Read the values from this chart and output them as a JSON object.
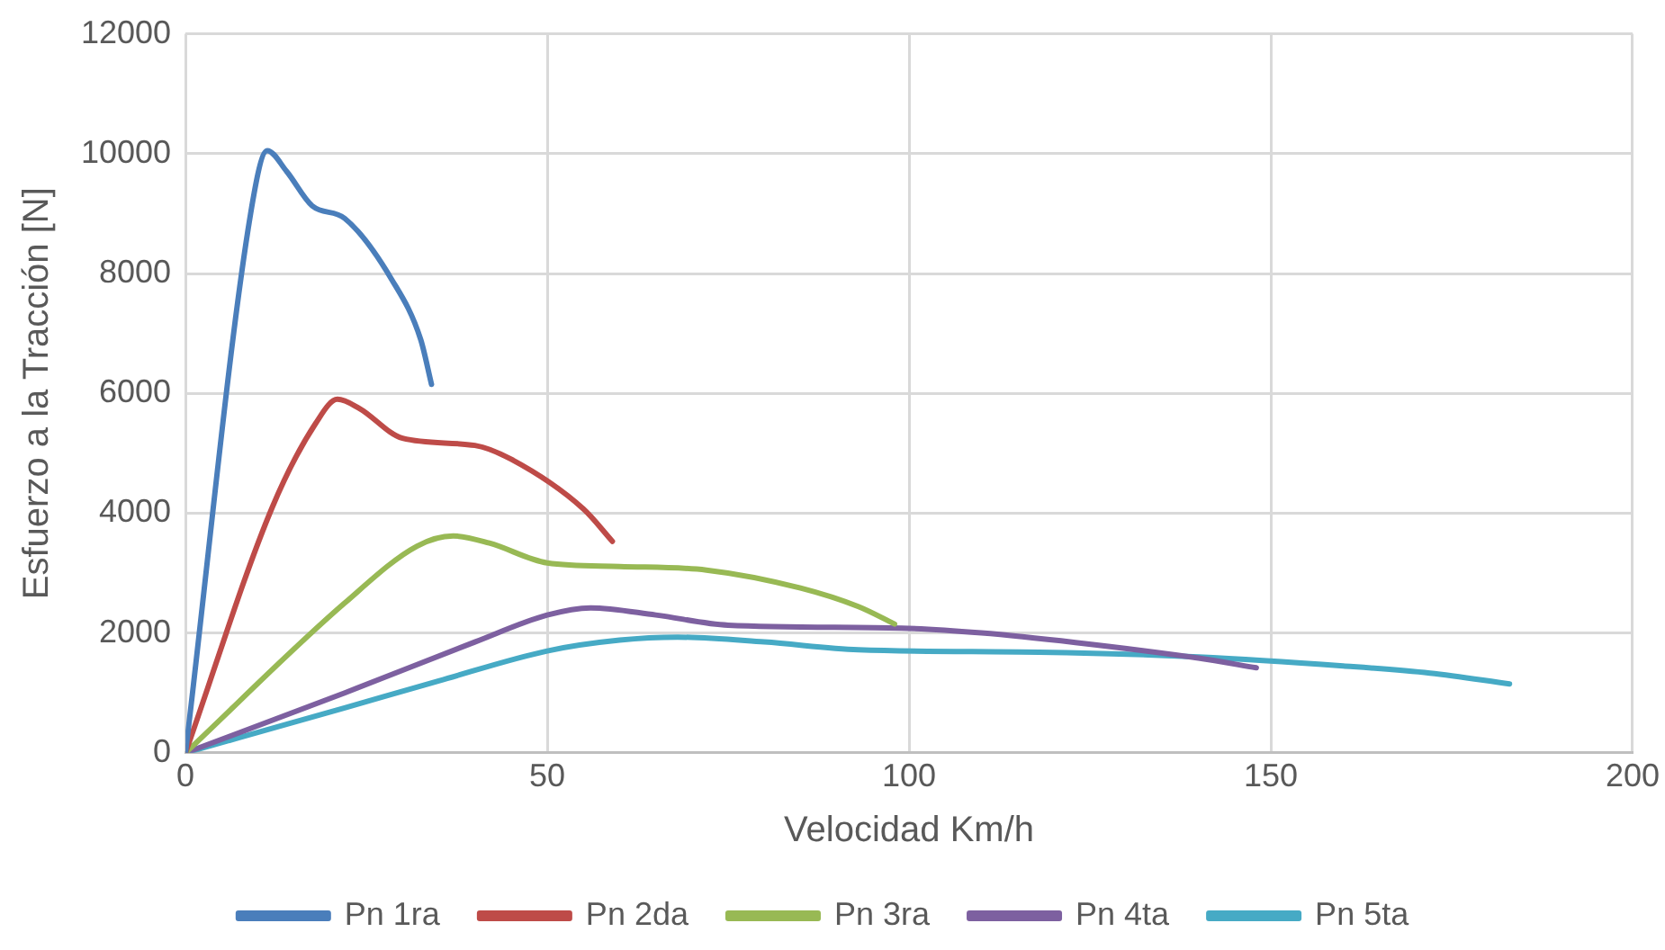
{
  "chart_data": {
    "type": "line",
    "xlabel": "Velocidad Km/h",
    "ylabel": "Esfuerzo a la Tracción [N]",
    "xlim": [
      0,
      200
    ],
    "xticks": [
      0,
      50,
      100,
      150,
      200
    ],
    "ylim": [
      0,
      12000
    ],
    "yticks": [
      0,
      2000,
      4000,
      6000,
      8000,
      10000,
      12000
    ],
    "grid": true,
    "legend": "bottom",
    "marker": "none",
    "series": [
      {
        "name": "Pn 1ra",
        "color": "#4a7ebb",
        "x": [
          0,
          9,
          11.3,
          14,
          17.5,
          22,
          28.5,
          32.5,
          34
        ],
        "values": [
          0,
          9000,
          10050,
          9700,
          9130,
          8920,
          7900,
          6900,
          6150
        ]
      },
      {
        "name": "Pn 2da",
        "color": "#be4b48",
        "x": [
          0,
          12,
          18,
          21,
          24,
          30,
          40,
          45,
          55,
          59
        ],
        "values": [
          0,
          4100,
          5500,
          5900,
          5750,
          5250,
          5130,
          4900,
          4070,
          3530
        ]
      },
      {
        "name": "Pn 3ra",
        "color": "#98b954",
        "x": [
          0,
          22,
          32,
          37,
          42,
          50,
          60,
          72,
          85,
          93,
          98
        ],
        "values": [
          0,
          2500,
          3450,
          3620,
          3500,
          3170,
          3110,
          3050,
          2750,
          2440,
          2150
        ]
      },
      {
        "name": "Pn 4ta",
        "color": "#7d60a0",
        "x": [
          0,
          22,
          40,
          50,
          56,
          65,
          75,
          99,
          110,
          123,
          140,
          148
        ],
        "values": [
          0,
          1000,
          1850,
          2300,
          2420,
          2300,
          2130,
          2080,
          2000,
          1840,
          1580,
          1420
        ]
      },
      {
        "name": "Pn 5ta",
        "color": "#46aac5",
        "x": [
          0,
          22,
          35,
          50,
          60,
          68,
          80,
          93,
          118,
          140,
          160,
          172,
          183
        ],
        "values": [
          0,
          750,
          1200,
          1700,
          1880,
          1930,
          1850,
          1720,
          1680,
          1600,
          1450,
          1330,
          1150
        ]
      }
    ]
  }
}
